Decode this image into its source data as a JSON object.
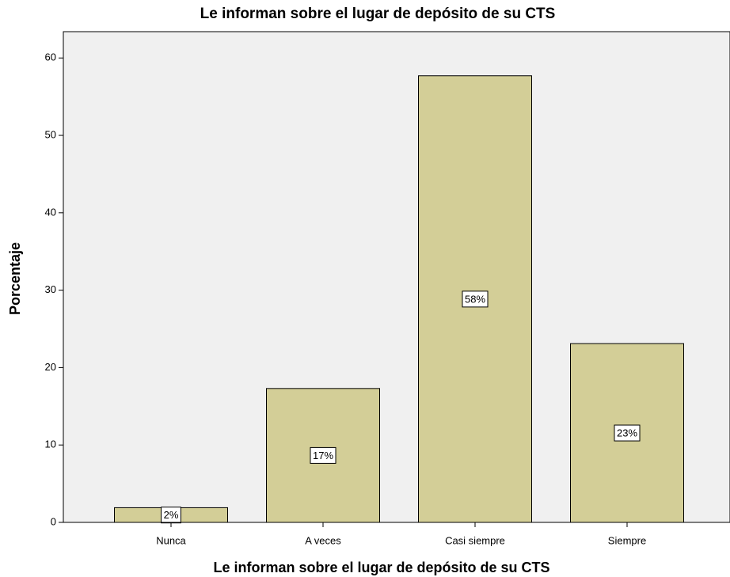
{
  "chart_data": {
    "type": "bar",
    "title": "Le informan sobre el lugar de depósito de su CTS",
    "x_label": "Le informan sobre el lugar de depósito de su CTS",
    "y_label": "Porcentaje",
    "categories": [
      "Nunca",
      "A veces",
      "Casi siempre",
      "Siempre"
    ],
    "values": [
      1.9,
      17.3,
      57.7,
      23.1
    ],
    "value_labels": [
      "2%",
      "17%",
      "58%",
      "23%"
    ],
    "color": "#d3ce97",
    "ylim": [
      0,
      63.4
    ],
    "yticks": [
      0,
      10,
      20,
      30,
      40,
      50,
      60
    ],
    "grid": false
  }
}
